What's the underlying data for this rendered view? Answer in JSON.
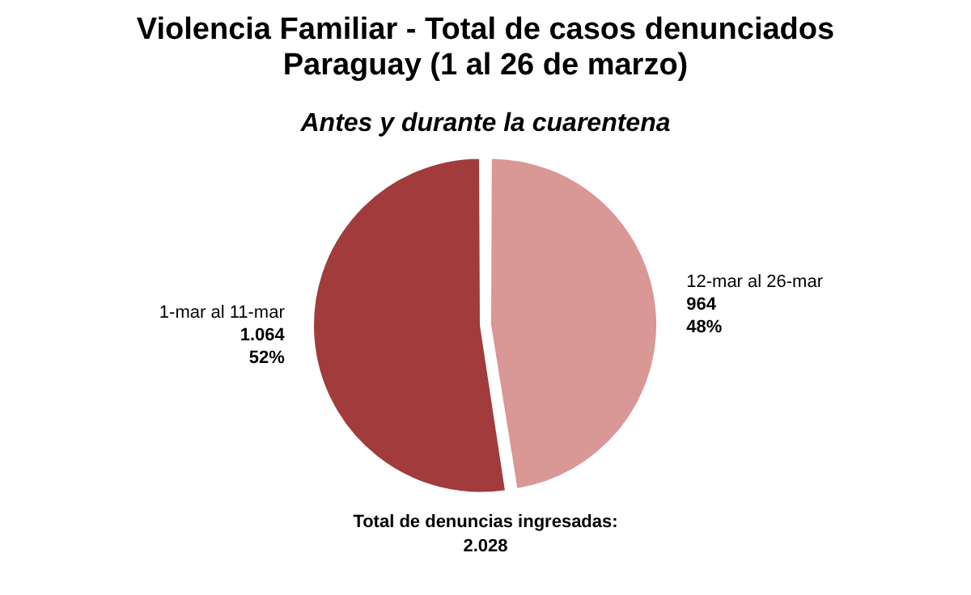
{
  "chart_data": {
    "type": "pie",
    "title": "Violencia Familiar - Total de casos denunciados Paraguay (1 al 26 de marzo)",
    "subtitle": "Antes y durante la cuarentena",
    "categories": [
      "1-mar al 11-mar",
      "12-mar al 26-mar"
    ],
    "values": [
      1064,
      964
    ],
    "value_labels": [
      "1.064\n52%",
      "964\n48%"
    ],
    "colors": [
      "#a23b3c",
      "#d99795"
    ],
    "legend": false,
    "annotations": [
      "Total de denuncias ingresadas:\n2.028"
    ]
  }
}
